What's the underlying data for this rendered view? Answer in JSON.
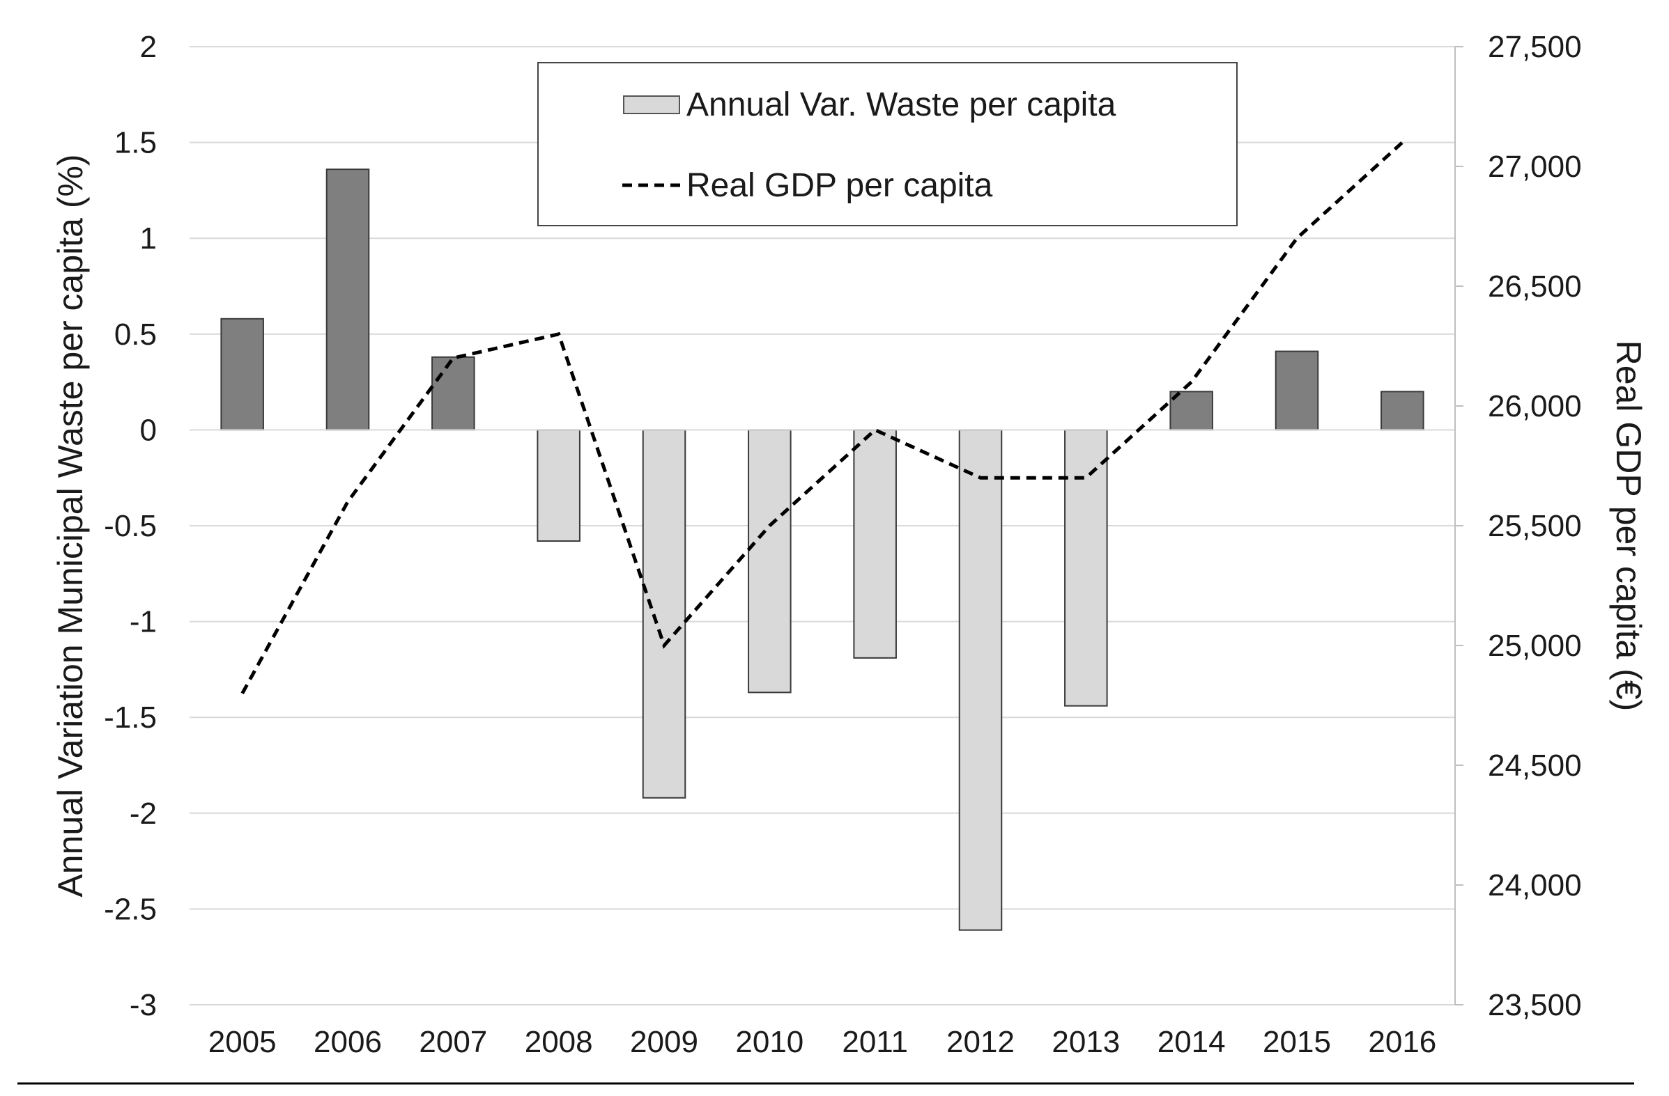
{
  "chart_data": {
    "type": "bar",
    "categories": [
      "2005",
      "2006",
      "2007",
      "2008",
      "2009",
      "2010",
      "2011",
      "2012",
      "2013",
      "2014",
      "2015",
      "2016"
    ],
    "series": [
      {
        "name": "Annual Var. Waste per capita",
        "type": "bar",
        "axis": "left",
        "values": [
          0.58,
          1.36,
          0.38,
          -0.58,
          -1.92,
          -1.37,
          -1.19,
          -2.61,
          -1.44,
          0.2,
          0.41,
          0.2
        ],
        "color_positive": "#7f7f7f",
        "color_negative": "#d9d9d9"
      },
      {
        "name": "Real GDP per capita",
        "type": "line",
        "axis": "right",
        "style": "dashed",
        "values": [
          24800,
          25600,
          26200,
          26300,
          25000,
          25500,
          25900,
          25700,
          25700,
          26100,
          26700,
          27100
        ],
        "color": "#000000"
      }
    ],
    "ylabel": "Annual Variation Municipal Waste per capita (%)",
    "y2label": "Real GDP per capita (€)",
    "ylim": [
      -3,
      2
    ],
    "y2lim": [
      23500,
      27500
    ],
    "yticks": [
      "2",
      "1.5",
      "1",
      "0.5",
      "0",
      "-0.5",
      "-1",
      "-1.5",
      "-2",
      "-2.5",
      "-3"
    ],
    "y2ticks": [
      "27,500",
      "27,000",
      "26,500",
      "26,000",
      "25,500",
      "25,000",
      "24,500",
      "24,000",
      "23,500"
    ],
    "legend": {
      "position": "top-center",
      "bar_label": "Annual Var. Waste per capita",
      "line_label": "Real GDP per capita"
    },
    "grid": true,
    "grid_color": "#d9d9d9"
  }
}
